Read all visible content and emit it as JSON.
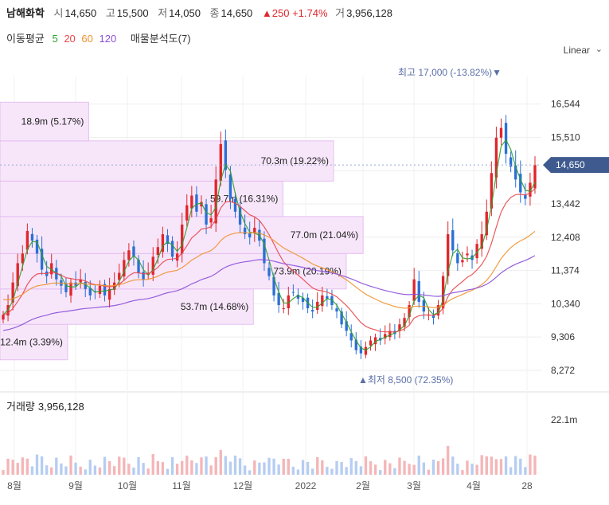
{
  "header": {
    "name": "남해화학",
    "open_label": "시",
    "open": "14,650",
    "high_label": "고",
    "high": "15,500",
    "low_label": "저",
    "low": "14,050",
    "close_label": "종",
    "close": "14,650",
    "change": "▲250 +1.74%",
    "volume_label": "거",
    "volume": "3,956,128"
  },
  "ma_bar": {
    "label": "이동평균",
    "ma": [
      {
        "text": "5",
        "color": "#2ca02c"
      },
      {
        "text": "20",
        "color": "#e8474b"
      },
      {
        "text": "60",
        "color": "#f0922c"
      },
      {
        "text": "120",
        "color": "#8a4fd8"
      }
    ],
    "profile_label": "매물분석도(7)"
  },
  "scale_label": "Linear",
  "volume_panel_label": "거래량",
  "volume_panel_value": "3,956,128",
  "current_price_tag": "14,650",
  "colors": {
    "up": "#e0262b",
    "down": "#2a6fd6",
    "profile": "#f7e6fa",
    "profile_border": "#e4bff0",
    "tag": "#3f5a8f"
  },
  "chart_data": {
    "type": "candlestick",
    "x_ticks": [
      "8월",
      "9월",
      "10월",
      "11월",
      "12월",
      "2022",
      "2월",
      "3월",
      "4월",
      "28"
    ],
    "y_ticks": [
      16544,
      15510,
      14476,
      13442,
      12408,
      11374,
      10340,
      9306,
      8272
    ],
    "y_tick_labels": [
      "16,544",
      "15,510",
      "",
      "13,442",
      "12,408",
      "11,374",
      "10,340",
      "9,306",
      "8,272"
    ],
    "ylim": [
      7900,
      17400
    ],
    "volume_tick": "22.1m",
    "annotations": {
      "high": {
        "text": "최고 17,000 (-13.82%)▼",
        "value": 17000
      },
      "low": {
        "text": "▲최저 8,500 (72.35%)",
        "value": 8500
      }
    },
    "volume_profile": [
      {
        "label": "12.4m (3.39%)",
        "low": 8600,
        "high": 9700,
        "length": 0.16
      },
      {
        "label": "53.7m (14.68%)",
        "low": 9700,
        "high": 10800,
        "length": 0.6
      },
      {
        "label": "73.9m (20.19%)",
        "low": 10800,
        "high": 11900,
        "length": 0.82
      },
      {
        "label": "77.0m (21.04%)",
        "low": 11900,
        "high": 13050,
        "length": 0.86
      },
      {
        "label": "59.7m (16.31%)",
        "low": 13050,
        "high": 14150,
        "length": 0.67
      },
      {
        "label": "70.3m (19.22%)",
        "low": 14150,
        "high": 15400,
        "length": 0.79
      },
      {
        "label": "18.9m (5.17%)",
        "low": 15400,
        "high": 16600,
        "length": 0.21
      }
    ],
    "closes": [
      10000,
      10300,
      11000,
      11600,
      11900,
      12600,
      12300,
      11900,
      11400,
      11200,
      11600,
      11100,
      10900,
      10700,
      11000,
      10900,
      11100,
      10800,
      10600,
      10700,
      10900,
      10600,
      10800,
      11000,
      11300,
      11700,
      12000,
      11800,
      11300,
      11100,
      11300,
      11800,
      12100,
      12500,
      12200,
      11800,
      11900,
      12800,
      13400,
      13700,
      13200,
      13500,
      12800,
      13000,
      14200,
      15300,
      14500,
      13600,
      13200,
      12800,
      12500,
      12400,
      12700,
      12300,
      11600,
      11200,
      10600,
      10300,
      10200,
      10600,
      10700,
      10500,
      10400,
      10200,
      10100,
      10400,
      10600,
      10500,
      10300,
      10100,
      9700,
      9500,
      9200,
      8900,
      8800,
      9000,
      9200,
      9300,
      9200,
      9400,
      9500,
      9400,
      9700,
      9900,
      10300,
      11100,
      10400,
      10100,
      10000,
      9900,
      10300,
      11200,
      12500,
      12000,
      11600,
      11700,
      11900,
      11700,
      12200,
      12500,
      13200,
      14400,
      15500,
      15800,
      15000,
      14600,
      14200,
      13800,
      13600,
      14100,
      14650
    ]
  }
}
